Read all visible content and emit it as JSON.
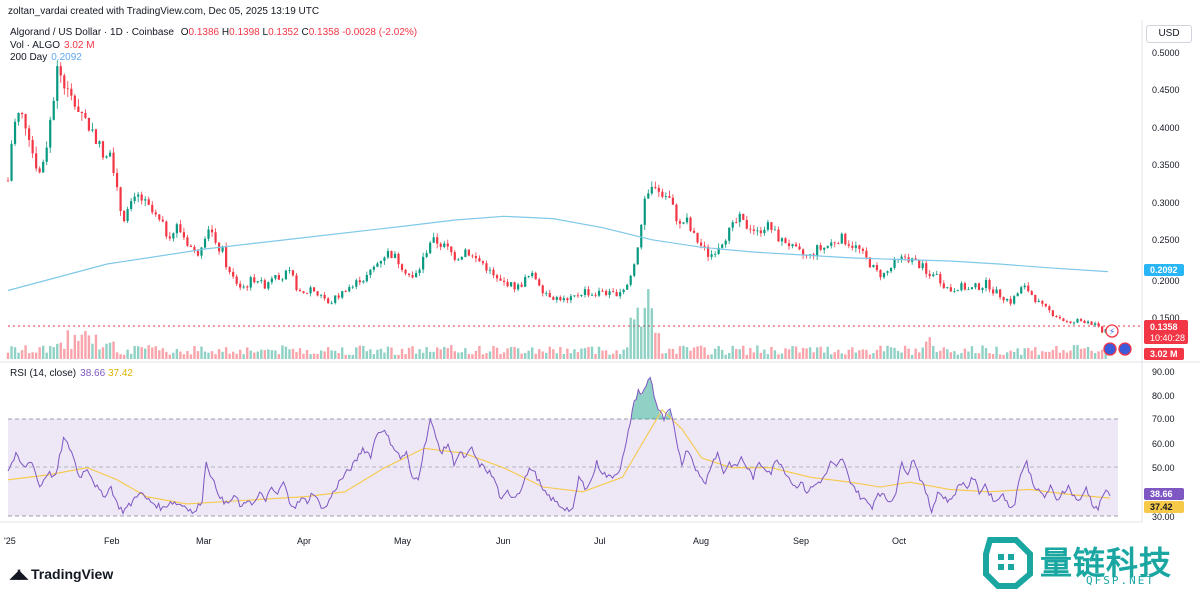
{
  "header": {
    "credit": "zoltan_vardai created with TradingView.com, Dec 05, 2025 13:19 UTC"
  },
  "legend": {
    "symbol": "Algorand / US Dollar · 1D · Coinbase",
    "open_label": "O",
    "open": "0.1386",
    "high_label": "H",
    "high": "0.1398",
    "low_label": "L",
    "low": "0.1352",
    "close_label": "C",
    "close": "0.1358",
    "change": "-0.0028 (-2.02%)",
    "vol_label": "Vol · ALGO",
    "vol": "3.02 M",
    "ma_label": "200 Day",
    "ma": "0.2092",
    "rsi_label": "RSI (14, close)",
    "rsi": "38.66",
    "rsi_ma": "37.42"
  },
  "currency": "USD",
  "price_axis": {
    "ticks": [
      "0.5000",
      "0.4500",
      "0.4000",
      "0.3500",
      "0.3000",
      "0.2500",
      "0.2000",
      "0.1500"
    ],
    "ma_badge": "0.2092",
    "price_badge": "0.1358",
    "countdown": "10:40:28",
    "vol_badge": "3.02 M"
  },
  "rsi_axis": {
    "ticks": [
      "90.00",
      "80.00",
      "70.00",
      "60.00",
      "50.00",
      "40.00",
      "30.00"
    ],
    "rsi_badge": "38.66",
    "ma_badge": "37.42"
  },
  "time_axis": {
    "labels": [
      "'25",
      "Feb",
      "Mar",
      "Apr",
      "May",
      "Jun",
      "Jul",
      "Aug",
      "Sep",
      "Oct"
    ]
  },
  "branding": {
    "tradingview": "TradingView",
    "watermark_zh": "量链科技",
    "watermark_en": "QFSP.NET"
  },
  "colors": {
    "up": "#089981",
    "down": "#f23645",
    "ma200": "#7fc9e8",
    "rsi": "#7e57c2",
    "rsi_ma": "#f7c948",
    "rsi_band": "#ede7f6"
  },
  "chart_data": {
    "type": "candlestick",
    "title": "Algorand / US Dollar · 1D · Coinbase",
    "ylim": [
      0.12,
      0.52
    ],
    "price_path": [
      [
        0,
        0.33
      ],
      [
        5,
        0.4
      ],
      [
        12,
        0.42
      ],
      [
        20,
        0.4
      ],
      [
        26,
        0.36
      ],
      [
        32,
        0.34
      ],
      [
        38,
        0.37
      ],
      [
        44,
        0.42
      ],
      [
        50,
        0.48
      ],
      [
        56,
        0.46
      ],
      [
        62,
        0.44
      ],
      [
        68,
        0.43
      ],
      [
        75,
        0.42
      ],
      [
        82,
        0.4
      ],
      [
        88,
        0.39
      ],
      [
        94,
        0.37
      ],
      [
        98,
        0.35
      ],
      [
        104,
        0.38
      ],
      [
        108,
        0.33
      ],
      [
        112,
        0.3
      ],
      [
        116,
        0.28
      ],
      [
        120,
        0.29
      ],
      [
        126,
        0.3
      ],
      [
        132,
        0.31
      ],
      [
        138,
        0.3
      ],
      [
        144,
        0.29
      ],
      [
        150,
        0.28
      ],
      [
        156,
        0.27
      ],
      [
        160,
        0.26
      ],
      [
        166,
        0.26
      ],
      [
        170,
        0.27
      ],
      [
        176,
        0.26
      ],
      [
        180,
        0.25
      ],
      [
        186,
        0.24
      ],
      [
        190,
        0.23
      ],
      [
        196,
        0.25
      ],
      [
        202,
        0.27
      ],
      [
        206,
        0.26
      ],
      [
        210,
        0.24
      ],
      [
        216,
        0.24
      ],
      [
        222,
        0.21
      ],
      [
        228,
        0.2
      ],
      [
        234,
        0.19
      ],
      [
        240,
        0.19
      ],
      [
        246,
        0.2
      ],
      [
        252,
        0.2
      ],
      [
        258,
        0.19
      ],
      [
        264,
        0.2
      ],
      [
        270,
        0.21
      ],
      [
        276,
        0.2
      ],
      [
        282,
        0.21
      ],
      [
        288,
        0.2
      ],
      [
        294,
        0.18
      ],
      [
        300,
        0.18
      ],
      [
        306,
        0.19
      ],
      [
        312,
        0.18
      ],
      [
        318,
        0.18
      ],
      [
        322,
        0.165
      ],
      [
        326,
        0.17
      ],
      [
        330,
        0.175
      ],
      [
        336,
        0.18
      ],
      [
        342,
        0.19
      ],
      [
        348,
        0.19
      ],
      [
        354,
        0.2
      ],
      [
        360,
        0.2
      ],
      [
        366,
        0.21
      ],
      [
        372,
        0.22
      ],
      [
        378,
        0.23
      ],
      [
        384,
        0.235
      ],
      [
        390,
        0.23
      ],
      [
        396,
        0.22
      ],
      [
        402,
        0.21
      ],
      [
        408,
        0.2
      ],
      [
        414,
        0.21
      ],
      [
        420,
        0.23
      ],
      [
        426,
        0.25
      ],
      [
        432,
        0.25
      ],
      [
        438,
        0.245
      ],
      [
        444,
        0.24
      ],
      [
        450,
        0.23
      ],
      [
        456,
        0.23
      ],
      [
        462,
        0.24
      ],
      [
        468,
        0.23
      ],
      [
        474,
        0.225
      ],
      [
        480,
        0.22
      ],
      [
        486,
        0.21
      ],
      [
        492,
        0.2
      ],
      [
        498,
        0.195
      ],
      [
        504,
        0.195
      ],
      [
        510,
        0.19
      ],
      [
        516,
        0.19
      ],
      [
        522,
        0.2
      ],
      [
        528,
        0.205
      ],
      [
        534,
        0.2
      ],
      [
        540,
        0.185
      ],
      [
        546,
        0.18
      ],
      [
        552,
        0.175
      ],
      [
        558,
        0.175
      ],
      [
        564,
        0.17
      ],
      [
        570,
        0.175
      ],
      [
        576,
        0.18
      ],
      [
        582,
        0.185
      ],
      [
        588,
        0.18
      ],
      [
        594,
        0.18
      ],
      [
        600,
        0.185
      ],
      [
        606,
        0.18
      ],
      [
        612,
        0.18
      ],
      [
        618,
        0.185
      ],
      [
        624,
        0.19
      ],
      [
        630,
        0.21
      ],
      [
        636,
        0.25
      ],
      [
        640,
        0.28
      ],
      [
        644,
        0.31
      ],
      [
        648,
        0.31
      ],
      [
        652,
        0.33
      ],
      [
        656,
        0.32
      ],
      [
        660,
        0.31
      ],
      [
        666,
        0.31
      ],
      [
        672,
        0.29
      ],
      [
        678,
        0.27
      ],
      [
        684,
        0.28
      ],
      [
        690,
        0.26
      ],
      [
        696,
        0.25
      ],
      [
        702,
        0.24
      ],
      [
        708,
        0.23
      ],
      [
        714,
        0.24
      ],
      [
        720,
        0.25
      ],
      [
        726,
        0.26
      ],
      [
        732,
        0.27
      ],
      [
        738,
        0.28
      ],
      [
        744,
        0.27
      ],
      [
        750,
        0.27
      ],
      [
        756,
        0.26
      ],
      [
        762,
        0.27
      ],
      [
        768,
        0.27
      ],
      [
        774,
        0.26
      ],
      [
        780,
        0.25
      ],
      [
        786,
        0.25
      ],
      [
        792,
        0.24
      ],
      [
        798,
        0.235
      ],
      [
        804,
        0.23
      ],
      [
        810,
        0.23
      ],
      [
        816,
        0.24
      ],
      [
        822,
        0.24
      ],
      [
        828,
        0.245
      ],
      [
        834,
        0.25
      ],
      [
        840,
        0.255
      ],
      [
        846,
        0.25
      ],
      [
        852,
        0.245
      ],
      [
        858,
        0.24
      ],
      [
        864,
        0.23
      ],
      [
        870,
        0.22
      ],
      [
        876,
        0.21
      ],
      [
        882,
        0.205
      ],
      [
        888,
        0.21
      ],
      [
        894,
        0.22
      ],
      [
        900,
        0.225
      ],
      [
        906,
        0.23
      ],
      [
        912,
        0.225
      ],
      [
        918,
        0.22
      ],
      [
        924,
        0.215
      ],
      [
        928,
        0.2
      ],
      [
        934,
        0.21
      ],
      [
        940,
        0.2
      ],
      [
        946,
        0.19
      ],
      [
        952,
        0.185
      ],
      [
        958,
        0.19
      ],
      [
        964,
        0.19
      ],
      [
        970,
        0.185
      ],
      [
        976,
        0.19
      ],
      [
        982,
        0.19
      ],
      [
        988,
        0.195
      ],
      [
        994,
        0.185
      ],
      [
        1000,
        0.18
      ],
      [
        1006,
        0.175
      ],
      [
        1012,
        0.17
      ],
      [
        1018,
        0.18
      ],
      [
        1024,
        0.19
      ],
      [
        1030,
        0.185
      ],
      [
        1036,
        0.175
      ],
      [
        1042,
        0.165
      ],
      [
        1048,
        0.16
      ],
      [
        1054,
        0.155
      ],
      [
        1060,
        0.15
      ],
      [
        1066,
        0.145
      ],
      [
        1072,
        0.14
      ],
      [
        1078,
        0.145
      ],
      [
        1084,
        0.145
      ],
      [
        1090,
        0.145
      ],
      [
        1096,
        0.14
      ],
      [
        1100,
        0.135
      ],
      [
        1104,
        0.13
      ],
      [
        1110,
        0.1358
      ]
    ],
    "ma200_path": [
      [
        0,
        0.185
      ],
      [
        100,
        0.22
      ],
      [
        200,
        0.24
      ],
      [
        300,
        0.255
      ],
      [
        400,
        0.27
      ],
      [
        450,
        0.278
      ],
      [
        500,
        0.283
      ],
      [
        550,
        0.28
      ],
      [
        600,
        0.268
      ],
      [
        650,
        0.252
      ],
      [
        700,
        0.242
      ],
      [
        750,
        0.236
      ],
      [
        800,
        0.232
      ],
      [
        850,
        0.228
      ],
      [
        900,
        0.226
      ],
      [
        950,
        0.224
      ],
      [
        1000,
        0.22
      ],
      [
        1050,
        0.215
      ],
      [
        1110,
        0.21
      ]
    ],
    "rsi_path": [
      [
        0,
        49
      ],
      [
        8,
        55
      ],
      [
        16,
        50
      ],
      [
        24,
        53
      ],
      [
        32,
        42
      ],
      [
        40,
        48
      ],
      [
        48,
        46
      ],
      [
        56,
        62
      ],
      [
        64,
        57
      ],
      [
        72,
        46
      ],
      [
        80,
        50
      ],
      [
        88,
        43
      ],
      [
        96,
        38
      ],
      [
        104,
        42
      ],
      [
        110,
        35
      ],
      [
        116,
        32
      ],
      [
        124,
        35
      ],
      [
        132,
        40
      ],
      [
        140,
        37
      ],
      [
        148,
        35
      ],
      [
        156,
        33
      ],
      [
        164,
        36
      ],
      [
        172,
        35
      ],
      [
        180,
        34
      ],
      [
        188,
        31
      ],
      [
        196,
        37
      ],
      [
        200,
        53
      ],
      [
        206,
        45
      ],
      [
        212,
        40
      ],
      [
        218,
        35
      ],
      [
        224,
        36
      ],
      [
        230,
        38
      ],
      [
        236,
        33
      ],
      [
        242,
        37
      ],
      [
        248,
        35
      ],
      [
        254,
        39
      ],
      [
        260,
        37
      ],
      [
        266,
        41
      ],
      [
        272,
        39
      ],
      [
        278,
        44
      ],
      [
        284,
        36
      ],
      [
        290,
        34
      ],
      [
        296,
        37
      ],
      [
        302,
        36
      ],
      [
        308,
        40
      ],
      [
        314,
        35
      ],
      [
        320,
        33
      ],
      [
        326,
        38
      ],
      [
        334,
        44
      ],
      [
        342,
        48
      ],
      [
        350,
        52
      ],
      [
        358,
        58
      ],
      [
        366,
        55
      ],
      [
        372,
        64
      ],
      [
        378,
        66
      ],
      [
        384,
        62
      ],
      [
        390,
        58
      ],
      [
        396,
        54
      ],
      [
        402,
        56
      ],
      [
        408,
        45
      ],
      [
        414,
        46
      ],
      [
        420,
        58
      ],
      [
        426,
        70
      ],
      [
        432,
        62
      ],
      [
        438,
        56
      ],
      [
        444,
        60
      ],
      [
        450,
        52
      ],
      [
        456,
        56
      ],
      [
        462,
        54
      ],
      [
        468,
        58
      ],
      [
        474,
        52
      ],
      [
        480,
        50
      ],
      [
        486,
        48
      ],
      [
        492,
        44
      ],
      [
        498,
        36
      ],
      [
        504,
        40
      ],
      [
        510,
        38
      ],
      [
        516,
        40
      ],
      [
        522,
        46
      ],
      [
        528,
        50
      ],
      [
        534,
        46
      ],
      [
        540,
        40
      ],
      [
        546,
        38
      ],
      [
        552,
        36
      ],
      [
        558,
        34
      ],
      [
        564,
        33
      ],
      [
        570,
        32
      ],
      [
        576,
        46
      ],
      [
        582,
        42
      ],
      [
        588,
        44
      ],
      [
        594,
        52
      ],
      [
        600,
        48
      ],
      [
        606,
        46
      ],
      [
        612,
        47
      ],
      [
        618,
        50
      ],
      [
        624,
        60
      ],
      [
        630,
        74
      ],
      [
        636,
        82
      ],
      [
        640,
        80
      ],
      [
        644,
        84
      ],
      [
        648,
        88
      ],
      [
        652,
        80
      ],
      [
        656,
        74
      ],
      [
        662,
        70
      ],
      [
        668,
        74
      ],
      [
        674,
        62
      ],
      [
        680,
        52
      ],
      [
        686,
        58
      ],
      [
        692,
        52
      ],
      [
        698,
        46
      ],
      [
        704,
        44
      ],
      [
        710,
        52
      ],
      [
        716,
        56
      ],
      [
        722,
        48
      ],
      [
        728,
        52
      ],
      [
        734,
        50
      ],
      [
        740,
        54
      ],
      [
        746,
        50
      ],
      [
        752,
        46
      ],
      [
        758,
        52
      ],
      [
        764,
        50
      ],
      [
        770,
        48
      ],
      [
        776,
        54
      ],
      [
        782,
        50
      ],
      [
        788,
        46
      ],
      [
        794,
        42
      ],
      [
        800,
        44
      ],
      [
        806,
        40
      ],
      [
        812,
        42
      ],
      [
        818,
        44
      ],
      [
        824,
        46
      ],
      [
        830,
        52
      ],
      [
        836,
        50
      ],
      [
        842,
        54
      ],
      [
        848,
        46
      ],
      [
        854,
        42
      ],
      [
        860,
        38
      ],
      [
        866,
        36
      ],
      [
        872,
        34
      ],
      [
        878,
        40
      ],
      [
        884,
        38
      ],
      [
        890,
        36
      ],
      [
        896,
        40
      ],
      [
        902,
        52
      ],
      [
        908,
        48
      ],
      [
        914,
        54
      ],
      [
        920,
        46
      ],
      [
        926,
        40
      ],
      [
        932,
        32
      ],
      [
        938,
        40
      ],
      [
        944,
        38
      ],
      [
        950,
        36
      ],
      [
        956,
        40
      ],
      [
        962,
        44
      ],
      [
        968,
        42
      ],
      [
        974,
        46
      ],
      [
        980,
        40
      ],
      [
        986,
        43
      ],
      [
        992,
        38
      ],
      [
        998,
        36
      ],
      [
        1004,
        40
      ],
      [
        1010,
        33
      ],
      [
        1016,
        36
      ],
      [
        1022,
        48
      ],
      [
        1028,
        52
      ],
      [
        1034,
        44
      ],
      [
        1040,
        40
      ],
      [
        1046,
        38
      ],
      [
        1052,
        42
      ],
      [
        1058,
        36
      ],
      [
        1064,
        40
      ],
      [
        1070,
        42
      ],
      [
        1076,
        38
      ],
      [
        1082,
        36
      ],
      [
        1088,
        42
      ],
      [
        1094,
        35
      ],
      [
        1100,
        33
      ],
      [
        1106,
        40
      ],
      [
        1112,
        38.66
      ]
    ],
    "rsi_ma_path": [
      [
        0,
        45
      ],
      [
        40,
        47
      ],
      [
        80,
        50
      ],
      [
        110,
        45
      ],
      [
        140,
        38
      ],
      [
        180,
        35
      ],
      [
        220,
        36
      ],
      [
        260,
        37
      ],
      [
        300,
        38
      ],
      [
        340,
        40
      ],
      [
        380,
        50
      ],
      [
        420,
        58
      ],
      [
        460,
        56
      ],
      [
        500,
        50
      ],
      [
        540,
        42
      ],
      [
        580,
        40
      ],
      [
        620,
        46
      ],
      [
        640,
        60
      ],
      [
        660,
        74
      ],
      [
        680,
        66
      ],
      [
        700,
        54
      ],
      [
        730,
        50
      ],
      [
        770,
        50
      ],
      [
        810,
        46
      ],
      [
        850,
        44
      ],
      [
        880,
        42
      ],
      [
        910,
        44
      ],
      [
        950,
        41
      ],
      [
        990,
        40
      ],
      [
        1030,
        41
      ],
      [
        1070,
        39
      ],
      [
        1112,
        37.42
      ]
    ]
  }
}
